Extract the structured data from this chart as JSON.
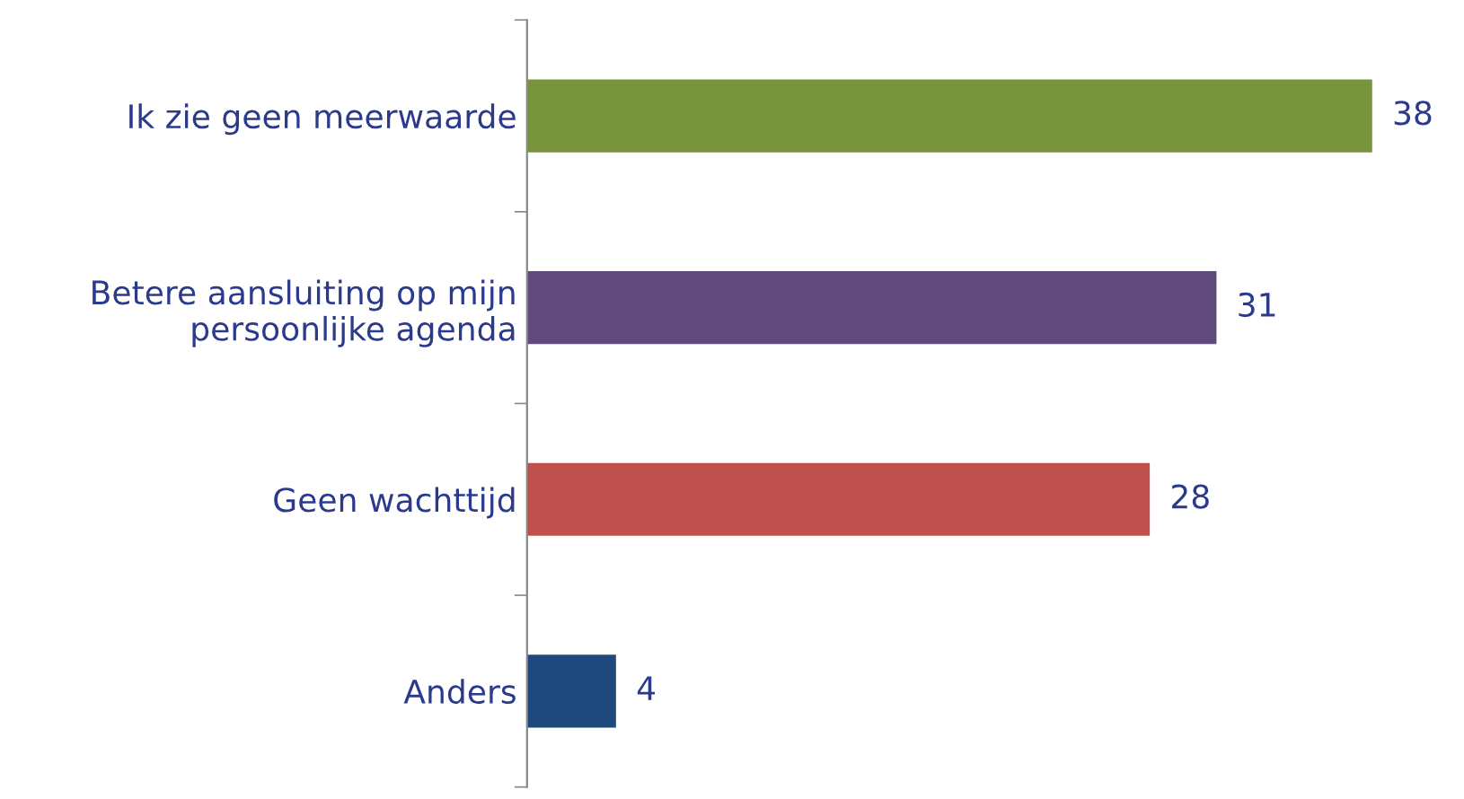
{
  "chart_data": {
    "type": "bar",
    "orientation": "horizontal",
    "categories": [
      "Ik zie geen meerwaarde",
      "Betere aansluiting op mijn\npersoonlijke agenda",
      "Geen wachttijd",
      "Anders"
    ],
    "values": [
      38,
      31,
      28,
      4
    ],
    "colors": [
      "#77933c",
      "#604a7b",
      "#c0504d",
      "#1f497d"
    ],
    "data_labels": true,
    "grid": false,
    "legend": false
  }
}
